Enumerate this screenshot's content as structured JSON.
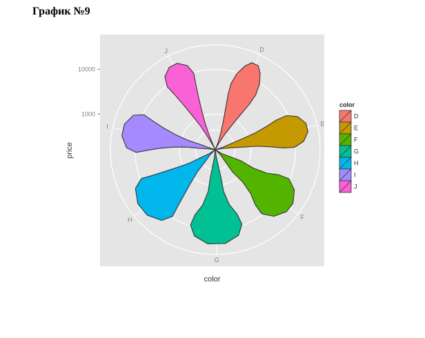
{
  "document": {
    "title": "График №9"
  },
  "chart_data": {
    "type": "violin",
    "coord": "polar",
    "xlabel": "color",
    "ylabel": "price",
    "y_scale": "log10",
    "y_ticks": [
      {
        "value": 1000,
        "label": "1000"
      },
      {
        "value": 10000,
        "label": "10000"
      }
    ],
    "categories": [
      "D",
      "E",
      "F",
      "G",
      "H",
      "I",
      "J"
    ],
    "legend": {
      "title": "color",
      "position": "right",
      "entries": [
        "D",
        "E",
        "F",
        "G",
        "H",
        "I",
        "J"
      ]
    },
    "colors": [
      "#F8766D",
      "#C49A00",
      "#53B400",
      "#00C094",
      "#00B6EB",
      "#A58AFF",
      "#FB61D7"
    ],
    "panel_background": "#e5e5e5",
    "grid": true,
    "series": [
      {
        "category": "D",
        "profile": [
          [
            0.0,
            0.003
          ],
          [
            0.08,
            0.02
          ],
          [
            0.18,
            0.036
          ],
          [
            0.3,
            0.05
          ],
          [
            0.45,
            0.06
          ],
          [
            0.6,
            0.066
          ],
          [
            0.72,
            0.064
          ],
          [
            0.84,
            0.05
          ],
          [
            0.94,
            0.03
          ],
          [
            1.0,
            0.012
          ]
        ]
      },
      {
        "category": "E",
        "profile": [
          [
            0.0,
            0.003
          ],
          [
            0.08,
            0.022
          ],
          [
            0.18,
            0.04
          ],
          [
            0.3,
            0.046
          ],
          [
            0.45,
            0.05
          ],
          [
            0.6,
            0.06
          ],
          [
            0.72,
            0.068
          ],
          [
            0.84,
            0.066
          ],
          [
            0.94,
            0.046
          ],
          [
            1.0,
            0.015
          ]
        ]
      },
      {
        "category": "F",
        "profile": [
          [
            0.0,
            0.003
          ],
          [
            0.08,
            0.04
          ],
          [
            0.18,
            0.07
          ],
          [
            0.3,
            0.08
          ],
          [
            0.45,
            0.066
          ],
          [
            0.6,
            0.074
          ],
          [
            0.72,
            0.09
          ],
          [
            0.84,
            0.09
          ],
          [
            0.94,
            0.06
          ],
          [
            1.0,
            0.018
          ]
        ]
      },
      {
        "category": "G",
        "profile": [
          [
            0.0,
            0.003
          ],
          [
            0.08,
            0.04
          ],
          [
            0.18,
            0.055
          ],
          [
            0.3,
            0.06
          ],
          [
            0.45,
            0.058
          ],
          [
            0.6,
            0.075
          ],
          [
            0.72,
            0.1
          ],
          [
            0.84,
            0.105
          ],
          [
            0.94,
            0.08
          ],
          [
            1.0,
            0.03
          ]
        ]
      },
      {
        "category": "H",
        "profile": [
          [
            0.0,
            0.003
          ],
          [
            0.08,
            0.035
          ],
          [
            0.18,
            0.06
          ],
          [
            0.3,
            0.065
          ],
          [
            0.45,
            0.08
          ],
          [
            0.6,
            0.09
          ],
          [
            0.72,
            0.095
          ],
          [
            0.84,
            0.1
          ],
          [
            0.94,
            0.075
          ],
          [
            1.0,
            0.025
          ]
        ]
      },
      {
        "category": "I",
        "profile": [
          [
            0.0,
            0.003
          ],
          [
            0.08,
            0.03
          ],
          [
            0.18,
            0.04
          ],
          [
            0.3,
            0.038
          ],
          [
            0.45,
            0.048
          ],
          [
            0.6,
            0.06
          ],
          [
            0.72,
            0.07
          ],
          [
            0.84,
            0.078
          ],
          [
            0.94,
            0.06
          ],
          [
            1.0,
            0.02
          ]
        ]
      },
      {
        "category": "J",
        "profile": [
          [
            0.0,
            0.003
          ],
          [
            0.08,
            0.015
          ],
          [
            0.18,
            0.022
          ],
          [
            0.3,
            0.03
          ],
          [
            0.45,
            0.042
          ],
          [
            0.6,
            0.05
          ],
          [
            0.72,
            0.055
          ],
          [
            0.84,
            0.06
          ],
          [
            0.94,
            0.045
          ],
          [
            1.0,
            0.015
          ]
        ]
      }
    ]
  }
}
